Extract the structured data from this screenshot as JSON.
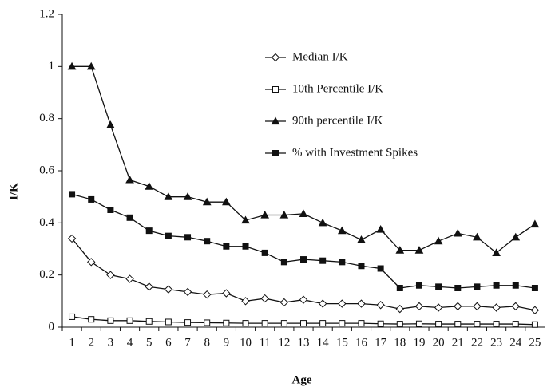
{
  "chart_data": {
    "type": "line",
    "x_label": "Age",
    "y_label": "I/K",
    "categories": [
      "1",
      "2",
      "3",
      "4",
      "5",
      "6",
      "7",
      "8",
      "9",
      "10",
      "11",
      "12",
      "13",
      "14",
      "15",
      "16",
      "17",
      "18",
      "19",
      "20",
      "21",
      "22",
      "23",
      "24",
      "25"
    ],
    "ylim": [
      0,
      1.2
    ],
    "yticks": [
      0,
      0.2,
      0.4,
      0.6,
      0.8,
      1,
      1.2
    ],
    "legend": "upper right",
    "series": [
      {
        "name": "Median I/K",
        "color": "#111111",
        "marker": "diamond-open",
        "values": [
          0.34,
          0.25,
          0.2,
          0.185,
          0.155,
          0.145,
          0.135,
          0.125,
          0.13,
          0.1,
          0.11,
          0.095,
          0.105,
          0.09,
          0.09,
          0.09,
          0.085,
          0.07,
          0.08,
          0.075,
          0.08,
          0.08,
          0.075,
          0.08,
          0.065
        ]
      },
      {
        "name": "10th Percentile I/K",
        "color": "#111111",
        "marker": "square-open",
        "values": [
          0.04,
          0.03,
          0.025,
          0.025,
          0.022,
          0.02,
          0.018,
          0.017,
          0.016,
          0.015,
          0.015,
          0.015,
          0.015,
          0.015,
          0.015,
          0.015,
          0.013,
          0.012,
          0.013,
          0.012,
          0.012,
          0.012,
          0.012,
          0.012,
          0.01
        ]
      },
      {
        "name": "90th percentile I/K",
        "color": "#111111",
        "marker": "triangle-filled",
        "values": [
          1,
          1,
          0.775,
          0.565,
          0.54,
          0.5,
          0.5,
          0.48,
          0.48,
          0.41,
          0.43,
          0.43,
          0.435,
          0.4,
          0.37,
          0.335,
          0.375,
          0.295,
          0.295,
          0.33,
          0.36,
          0.345,
          0.285,
          0.345,
          0.395
        ]
      },
      {
        "name": "% with Investment Spikes",
        "color": "#111111",
        "marker": "square-filled",
        "values": [
          0.51,
          0.49,
          0.45,
          0.42,
          0.37,
          0.35,
          0.345,
          0.33,
          0.31,
          0.31,
          0.285,
          0.25,
          0.26,
          0.255,
          0.25,
          0.235,
          0.225,
          0.15,
          0.16,
          0.155,
          0.15,
          0.155,
          0.16,
          0.16,
          0.15
        ]
      }
    ]
  }
}
